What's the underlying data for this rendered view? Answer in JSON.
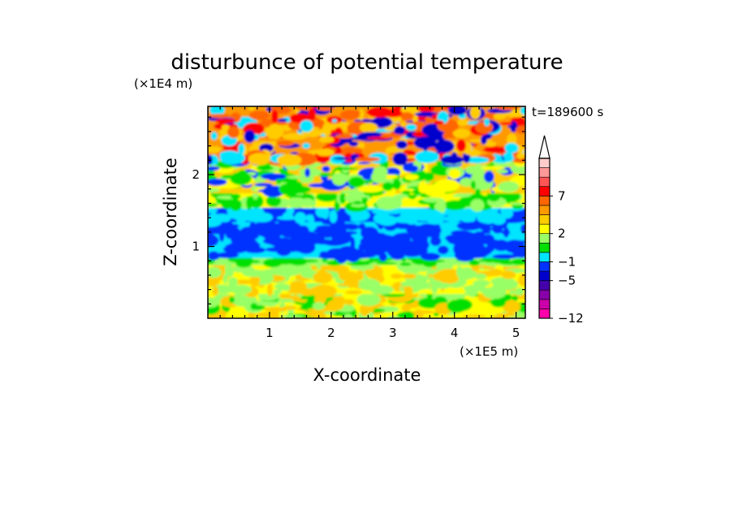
{
  "chart_data": {
    "type": "heatmap",
    "title": "disturbunce of potential temperature",
    "xlabel": "X-coordinate",
    "ylabel": "Z-coordinate",
    "x_multiplier": "(×1E5 m)",
    "y_multiplier": "(×1E4 m)",
    "time_label": "t=189600 s",
    "xlim": [
      0,
      5.15
    ],
    "ylim": [
      0,
      2.95
    ],
    "x_ticks": [
      {
        "value": 1,
        "label": "1"
      },
      {
        "value": 2,
        "label": "2"
      },
      {
        "value": 3,
        "label": "3"
      },
      {
        "value": 4,
        "label": "4"
      },
      {
        "value": 5,
        "label": "5"
      }
    ],
    "y_ticks": [
      {
        "value": 1,
        "label": "1"
      },
      {
        "value": 2,
        "label": "2"
      }
    ],
    "colorbar": {
      "levels": [
        {
          "color": "#ff00aa"
        },
        {
          "color": "#cc00aa"
        },
        {
          "color": "#8800aa"
        },
        {
          "color": "#4400aa"
        },
        {
          "color": "#0000cc"
        },
        {
          "color": "#0033ff"
        },
        {
          "color": "#00e5ff"
        },
        {
          "color": "#00e000"
        },
        {
          "color": "#99ff66"
        },
        {
          "color": "#ffff00"
        },
        {
          "color": "#ffcc00"
        },
        {
          "color": "#ff9900"
        },
        {
          "color": "#ff6600"
        },
        {
          "color": "#ff0000"
        },
        {
          "color": "#ff5555"
        },
        {
          "color": "#ff9999"
        },
        {
          "color": "#ffcccc"
        }
      ],
      "labels": [
        {
          "text": "-12",
          "level_index": 0
        },
        {
          "text": "-5",
          "level_index": 4
        },
        {
          "text": "-1",
          "level_index": 6
        },
        {
          "text": "2",
          "level_index": 9
        },
        {
          "text": "7",
          "level_index": 13
        }
      ],
      "extend": "max"
    },
    "layers": [
      {
        "z_range": [
          0.0,
          0.35
        ],
        "dominant_color": "#ffff00",
        "mixed": [
          "#99ff66",
          "#00e000",
          "#ffcc00"
        ]
      },
      {
        "z_range": [
          0.35,
          0.75
        ],
        "dominant_color": "#ffff00",
        "mixed": [
          "#ffcc00",
          "#99ff66"
        ]
      },
      {
        "z_range": [
          0.75,
          0.85
        ],
        "dominant_color": "#99ff66",
        "mixed": [
          "#00e000"
        ]
      },
      {
        "z_range": [
          0.85,
          1.35
        ],
        "dominant_color": "#00e5ff",
        "mixed": [
          "#0033ff"
        ]
      },
      {
        "z_range": [
          1.35,
          1.55
        ],
        "dominant_color": "#0033ff",
        "mixed": [
          "#00e5ff"
        ]
      },
      {
        "z_range": [
          1.55,
          1.75
        ],
        "dominant_color": "#ffff00",
        "mixed": [
          "#99ff66",
          "#00e000"
        ]
      },
      {
        "z_range": [
          1.75,
          2.2
        ],
        "dominant_color": "#ffcc00",
        "mixed": [
          "#ffff00",
          "#99ff66",
          "#00e000",
          "#0033ff"
        ]
      },
      {
        "z_range": [
          2.2,
          2.95
        ],
        "dominant_color": "#ff9900",
        "mixed": [
          "#ff6600",
          "#ffcc00",
          "#0000cc",
          "#00e5ff",
          "#ff0000"
        ]
      }
    ]
  }
}
